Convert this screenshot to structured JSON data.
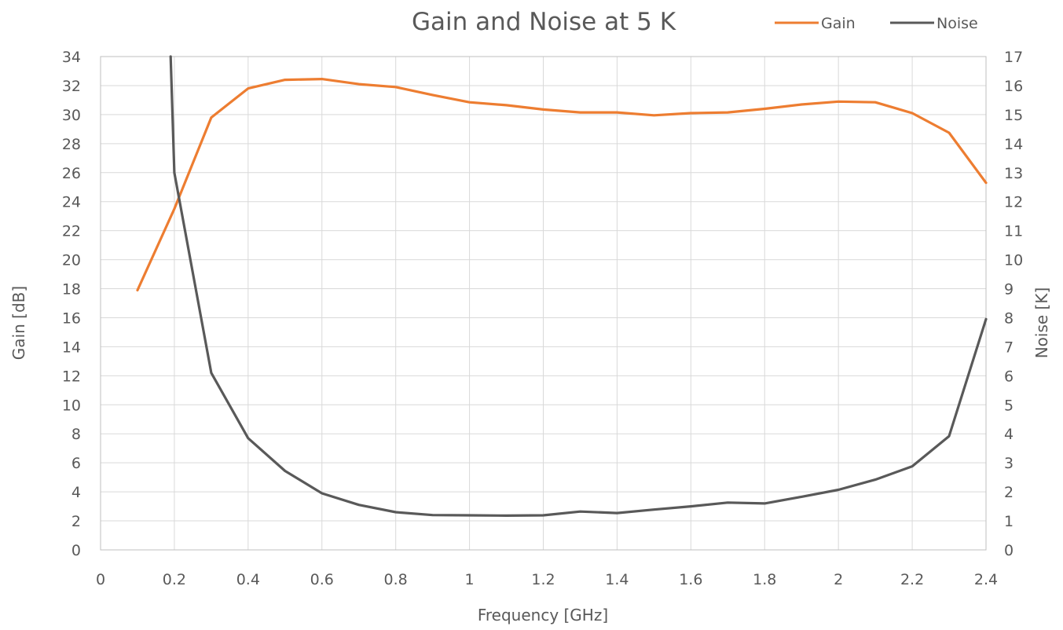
{
  "chart_data": {
    "type": "line",
    "title": "Gain and Noise at 5 K",
    "xlabel": "Frequency [GHz]",
    "ylabel_left": "Gain [dB]",
    "ylabel_right": "Noise [K]",
    "xlim": [
      0,
      2.4
    ],
    "ylim_left": [
      0,
      34
    ],
    "ylim_right": [
      0,
      17
    ],
    "x_ticks": [
      "0",
      "0.2",
      "0.4",
      "0.6",
      "0.8",
      "1",
      "1.2",
      "1.4",
      "1.6",
      "1.8",
      "2",
      "2.2",
      "2.4"
    ],
    "y_left_ticks": [
      "0",
      "2",
      "4",
      "6",
      "8",
      "10",
      "12",
      "14",
      "16",
      "18",
      "20",
      "22",
      "24",
      "26",
      "28",
      "30",
      "32",
      "34"
    ],
    "y_right_ticks": [
      "0",
      "1",
      "2",
      "3",
      "4",
      "5",
      "6",
      "7",
      "8",
      "9",
      "10",
      "11",
      "12",
      "13",
      "14",
      "15",
      "16",
      "17"
    ],
    "grid": true,
    "legend_position": "top-right",
    "x": [
      0.1,
      0.2,
      0.3,
      0.4,
      0.5,
      0.6,
      0.7,
      0.8,
      0.9,
      1.0,
      1.1,
      1.2,
      1.3,
      1.4,
      1.5,
      1.6,
      1.7,
      1.8,
      1.9,
      2.0,
      2.1,
      2.2,
      2.3,
      2.4
    ],
    "series": [
      {
        "name": "Gain",
        "axis": "left",
        "color": "#ed7d31",
        "values": [
          17.9,
          23.5,
          29.8,
          31.8,
          32.4,
          32.45,
          32.1,
          31.9,
          31.35,
          30.85,
          30.65,
          30.35,
          30.15,
          30.15,
          29.95,
          30.1,
          30.15,
          30.4,
          30.7,
          30.9,
          30.85,
          30.1,
          28.75,
          25.3
        ]
      },
      {
        "name": "Noise",
        "axis": "right",
        "color": "#595959",
        "x": [
          0.19,
          0.2,
          0.3,
          0.4,
          0.5,
          0.6,
          0.7,
          0.8,
          0.9,
          1.0,
          1.1,
          1.2,
          1.3,
          1.4,
          1.5,
          1.6,
          1.7,
          1.8,
          1.9,
          2.0,
          2.1,
          2.2,
          2.3,
          2.4
        ],
        "values": [
          17.0,
          13.0,
          6.1,
          3.85,
          2.72,
          1.95,
          1.55,
          1.3,
          1.2,
          1.19,
          1.18,
          1.19,
          1.32,
          1.27,
          1.39,
          1.5,
          1.63,
          1.6,
          1.83,
          2.07,
          2.42,
          2.88,
          3.92,
          7.95
        ]
      }
    ]
  }
}
